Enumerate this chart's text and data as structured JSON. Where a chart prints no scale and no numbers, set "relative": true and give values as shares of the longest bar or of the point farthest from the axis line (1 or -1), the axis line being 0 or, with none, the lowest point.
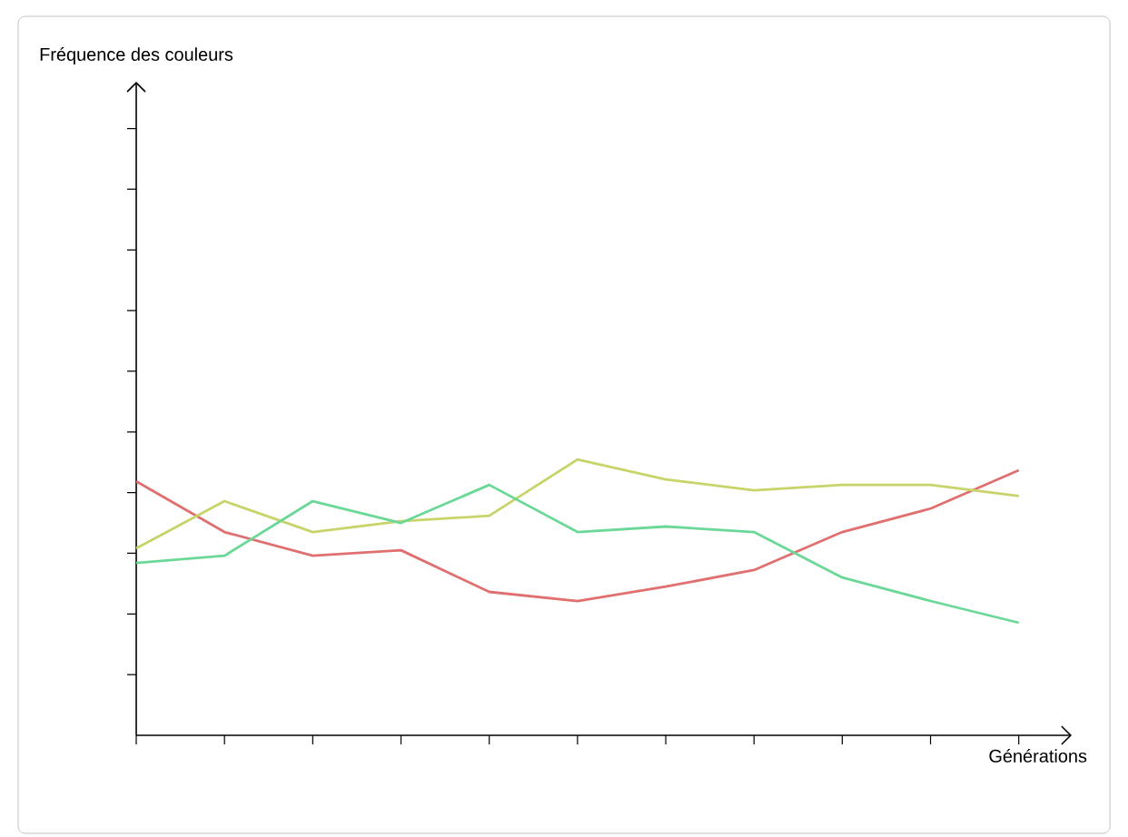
{
  "chart_data": {
    "type": "line",
    "relative": true,
    "xlabel": "Générations",
    "annotations": [
      "Fréquence des couleurs"
    ],
    "categories": [
      null,
      null,
      null,
      null,
      null,
      null,
      null,
      null,
      null,
      null,
      null
    ],
    "series": [
      {
        "color": "#e07070",
        "values": [
          0.921,
          0.737,
          0.651,
          0.671,
          0.52,
          0.487,
          0.539,
          0.599,
          0.737,
          0.822,
          0.961
        ]
      },
      {
        "color": "#c8d46a",
        "values": [
          0.678,
          0.849,
          0.737,
          0.776,
          0.796,
          1,
          0.928,
          0.888,
          0.908,
          0.908,
          0.868
        ]
      },
      {
        "color": "#6cd898",
        "values": [
          0.625,
          0.651,
          0.849,
          0.77,
          0.908,
          0.737,
          0.757,
          0.737,
          0.572,
          0.487,
          0.408
        ]
      }
    ],
    "marker": "none",
    "line_style": "solid"
  }
}
